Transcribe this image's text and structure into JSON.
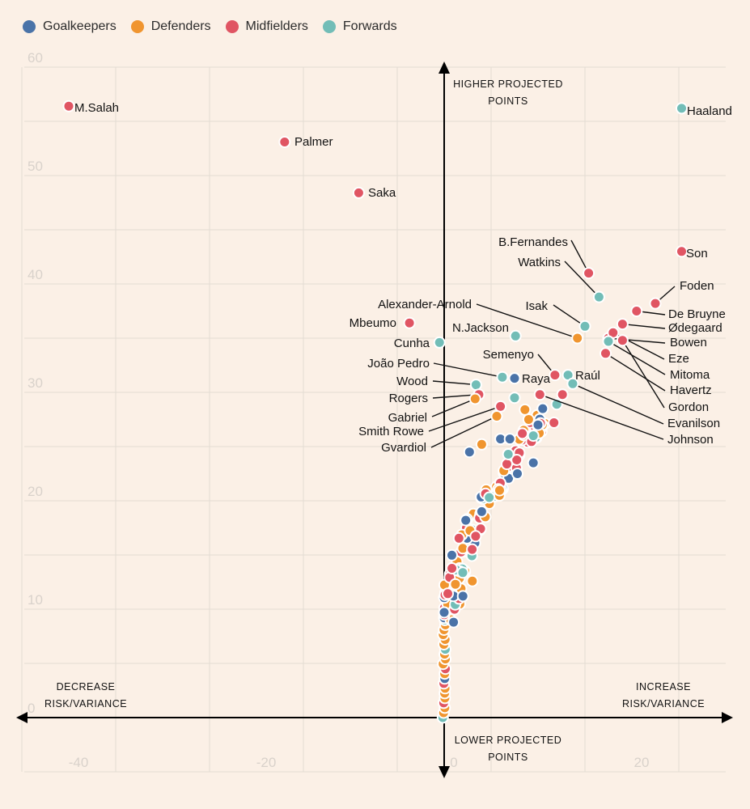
{
  "chart_data": {
    "type": "scatter",
    "title": "",
    "xlabel": "",
    "ylabel": "",
    "xlim": [
      -45,
      30
    ],
    "ylim": [
      -5,
      60
    ],
    "x_ticks": [
      -40,
      -20,
      0,
      20
    ],
    "y_ticks": [
      0,
      10,
      20,
      30,
      40,
      50,
      60
    ],
    "x_tick_labels": [
      "-40",
      "-20",
      "0",
      "20"
    ],
    "y_tick_labels": [
      "0",
      "10",
      "20",
      "30",
      "40",
      "50",
      "60"
    ],
    "grid": true,
    "legend_position": "top-left",
    "axis_captions": {
      "top": [
        "HIGHER PROJECTED",
        "POINTS"
      ],
      "bottom": [
        "LOWER PROJECTED",
        "POINTS"
      ],
      "left": [
        "DECREASE",
        "RISK/VARIANCE"
      ],
      "right": [
        "INCREASE",
        "RISK/VARIANCE"
      ]
    },
    "colors": {
      "Goalkeepers": "#4A73A8",
      "Defenders": "#F0952F",
      "Midfielders": "#E05563",
      "Forwards": "#72BDB7",
      "background": "#FBF0E6"
    },
    "legend": [
      "Goalkeepers",
      "Defenders",
      "Midfielders",
      "Forwards"
    ],
    "labeled_points": [
      {
        "name": "M.Salah",
        "group": "Midfielders",
        "x": -40.0,
        "y": 56.4
      },
      {
        "name": "Haaland",
        "group": "Forwards",
        "x": 25.3,
        "y": 56.2
      },
      {
        "name": "Palmer",
        "group": "Midfielders",
        "x": -17.0,
        "y": 53.1
      },
      {
        "name": "Saka",
        "group": "Midfielders",
        "x": -9.1,
        "y": 48.4
      },
      {
        "name": "Son",
        "group": "Midfielders",
        "x": 25.3,
        "y": 43.0
      },
      {
        "name": "B.Fernandes",
        "group": "Midfielders",
        "x": 15.4,
        "y": 41.0
      },
      {
        "name": "Watkins",
        "group": "Forwards",
        "x": 16.5,
        "y": 38.8
      },
      {
        "name": "Foden",
        "group": "Midfielders",
        "x": 22.5,
        "y": 38.2
      },
      {
        "name": "De Bruyne",
        "group": "Midfielders",
        "x": 20.5,
        "y": 37.5
      },
      {
        "name": "Ødegaard",
        "group": "Midfielders",
        "x": 19.0,
        "y": 36.3
      },
      {
        "name": "Isak",
        "group": "Forwards",
        "x": 15.0,
        "y": 36.1
      },
      {
        "name": "Alexander-Arnold",
        "group": "Defenders",
        "x": 14.2,
        "y": 35.0
      },
      {
        "name": "Bowen",
        "group": "Midfielders",
        "x": 17.5,
        "y": 35.0
      },
      {
        "name": "Eze",
        "group": "Midfielders",
        "x": 18.0,
        "y": 35.5
      },
      {
        "name": "Mitoma",
        "group": "Forwards",
        "x": 17.5,
        "y": 34.7
      },
      {
        "name": "Havertz",
        "group": "Midfielders",
        "x": 17.2,
        "y": 33.6
      },
      {
        "name": "Gordon",
        "group": "Midfielders",
        "x": 19.0,
        "y": 34.8
      },
      {
        "name": "Mbeumo",
        "group": "Midfielders",
        "x": -3.7,
        "y": 36.4
      },
      {
        "name": "N.Jackson",
        "group": "Forwards",
        "x": 7.6,
        "y": 35.2
      },
      {
        "name": "Cunha",
        "group": "Forwards",
        "x": -0.5,
        "y": 34.6
      },
      {
        "name": "Semenyo",
        "group": "Midfielders",
        "x": 11.8,
        "y": 31.6
      },
      {
        "name": "Raúl",
        "group": "Forwards",
        "x": 13.2,
        "y": 31.6
      },
      {
        "name": "João Pedro",
        "group": "Forwards",
        "x": 6.2,
        "y": 31.4
      },
      {
        "name": "Raya",
        "group": "Goalkeepers",
        "x": 7.5,
        "y": 31.3
      },
      {
        "name": "Evanilson",
        "group": "Forwards",
        "x": 13.7,
        "y": 30.8
      },
      {
        "name": "Wood",
        "group": "Forwards",
        "x": 3.4,
        "y": 30.7
      },
      {
        "name": "Rogers",
        "group": "Midfielders",
        "x": 3.7,
        "y": 29.8
      },
      {
        "name": "Johnson",
        "group": "Midfielders",
        "x": 10.2,
        "y": 29.8
      },
      {
        "name": "Gabriel",
        "group": "Defenders",
        "x": 3.3,
        "y": 29.4
      },
      {
        "name": "Smith Rowe",
        "group": "Midfielders",
        "x": 6.0,
        "y": 28.7
      },
      {
        "name": "Gvardiol",
        "group": "Defenders",
        "x": 5.6,
        "y": 27.8
      }
    ]
  }
}
